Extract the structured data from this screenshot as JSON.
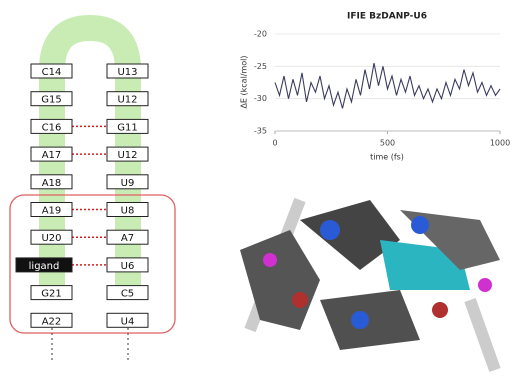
{
  "chart_data": {
    "type": "line",
    "title": "IFIE BzDANP-U6",
    "xlabel": "time (fs)",
    "ylabel": "ΔE (kcal/mol)",
    "x": [
      0,
      20,
      40,
      60,
      80,
      100,
      120,
      140,
      160,
      180,
      200,
      220,
      240,
      260,
      280,
      300,
      320,
      340,
      360,
      380,
      400,
      420,
      440,
      460,
      480,
      500,
      520,
      540,
      560,
      580,
      600,
      620,
      640,
      660,
      680,
      700,
      720,
      740,
      760,
      780,
      800,
      820,
      840,
      860,
      880,
      900,
      920,
      940,
      960,
      980,
      1000
    ],
    "values": [
      -27.5,
      -29.5,
      -26.5,
      -30,
      -27,
      -29.5,
      -26,
      -30.5,
      -27.5,
      -29,
      -26.5,
      -30,
      -28,
      -31,
      -29,
      -31.5,
      -28.5,
      -30.5,
      -27,
      -29.5,
      -25.5,
      -28.5,
      -24.5,
      -28,
      -25,
      -28.5,
      -26.5,
      -29.5,
      -27,
      -29,
      -26.5,
      -29.5,
      -28,
      -30,
      -28.5,
      -30.5,
      -28.5,
      -30,
      -27.5,
      -29.5,
      -27,
      -28.5,
      -25.5,
      -28,
      -26,
      -29,
      -27.5,
      -29.5,
      -28,
      -29.5,
      -28.5
    ],
    "color": "#3b3b5e",
    "xlim": [
      0,
      1000
    ],
    "ylim": [
      -35,
      -20
    ],
    "xticks": [
      0,
      500,
      1000
    ],
    "yticks": [
      -35,
      -30,
      -25,
      -20
    ]
  },
  "diagram": {
    "pairs": [
      {
        "left": "C14",
        "right": "U13",
        "bond": false,
        "dark": false
      },
      {
        "left": "G15",
        "right": "U12",
        "bond": false,
        "dark": false
      },
      {
        "left": "C16",
        "right": "G11",
        "bond": true,
        "dark": false
      },
      {
        "left": "A17",
        "right": "U12",
        "bond": true,
        "dark": false
      },
      {
        "left": "A18",
        "right": "U9",
        "bond": false,
        "dark": false
      },
      {
        "left": "A19",
        "right": "U8",
        "bond": true,
        "dark": false
      },
      {
        "left": "U20",
        "right": "A7",
        "bond": true,
        "dark": false
      },
      {
        "left": "ligand",
        "right": "U6",
        "bond": true,
        "dark": true
      },
      {
        "left": "G21",
        "right": "C5",
        "bond": false,
        "dark": false
      },
      {
        "left": "A22",
        "right": "U4",
        "bond": false,
        "dark": false
      }
    ]
  }
}
